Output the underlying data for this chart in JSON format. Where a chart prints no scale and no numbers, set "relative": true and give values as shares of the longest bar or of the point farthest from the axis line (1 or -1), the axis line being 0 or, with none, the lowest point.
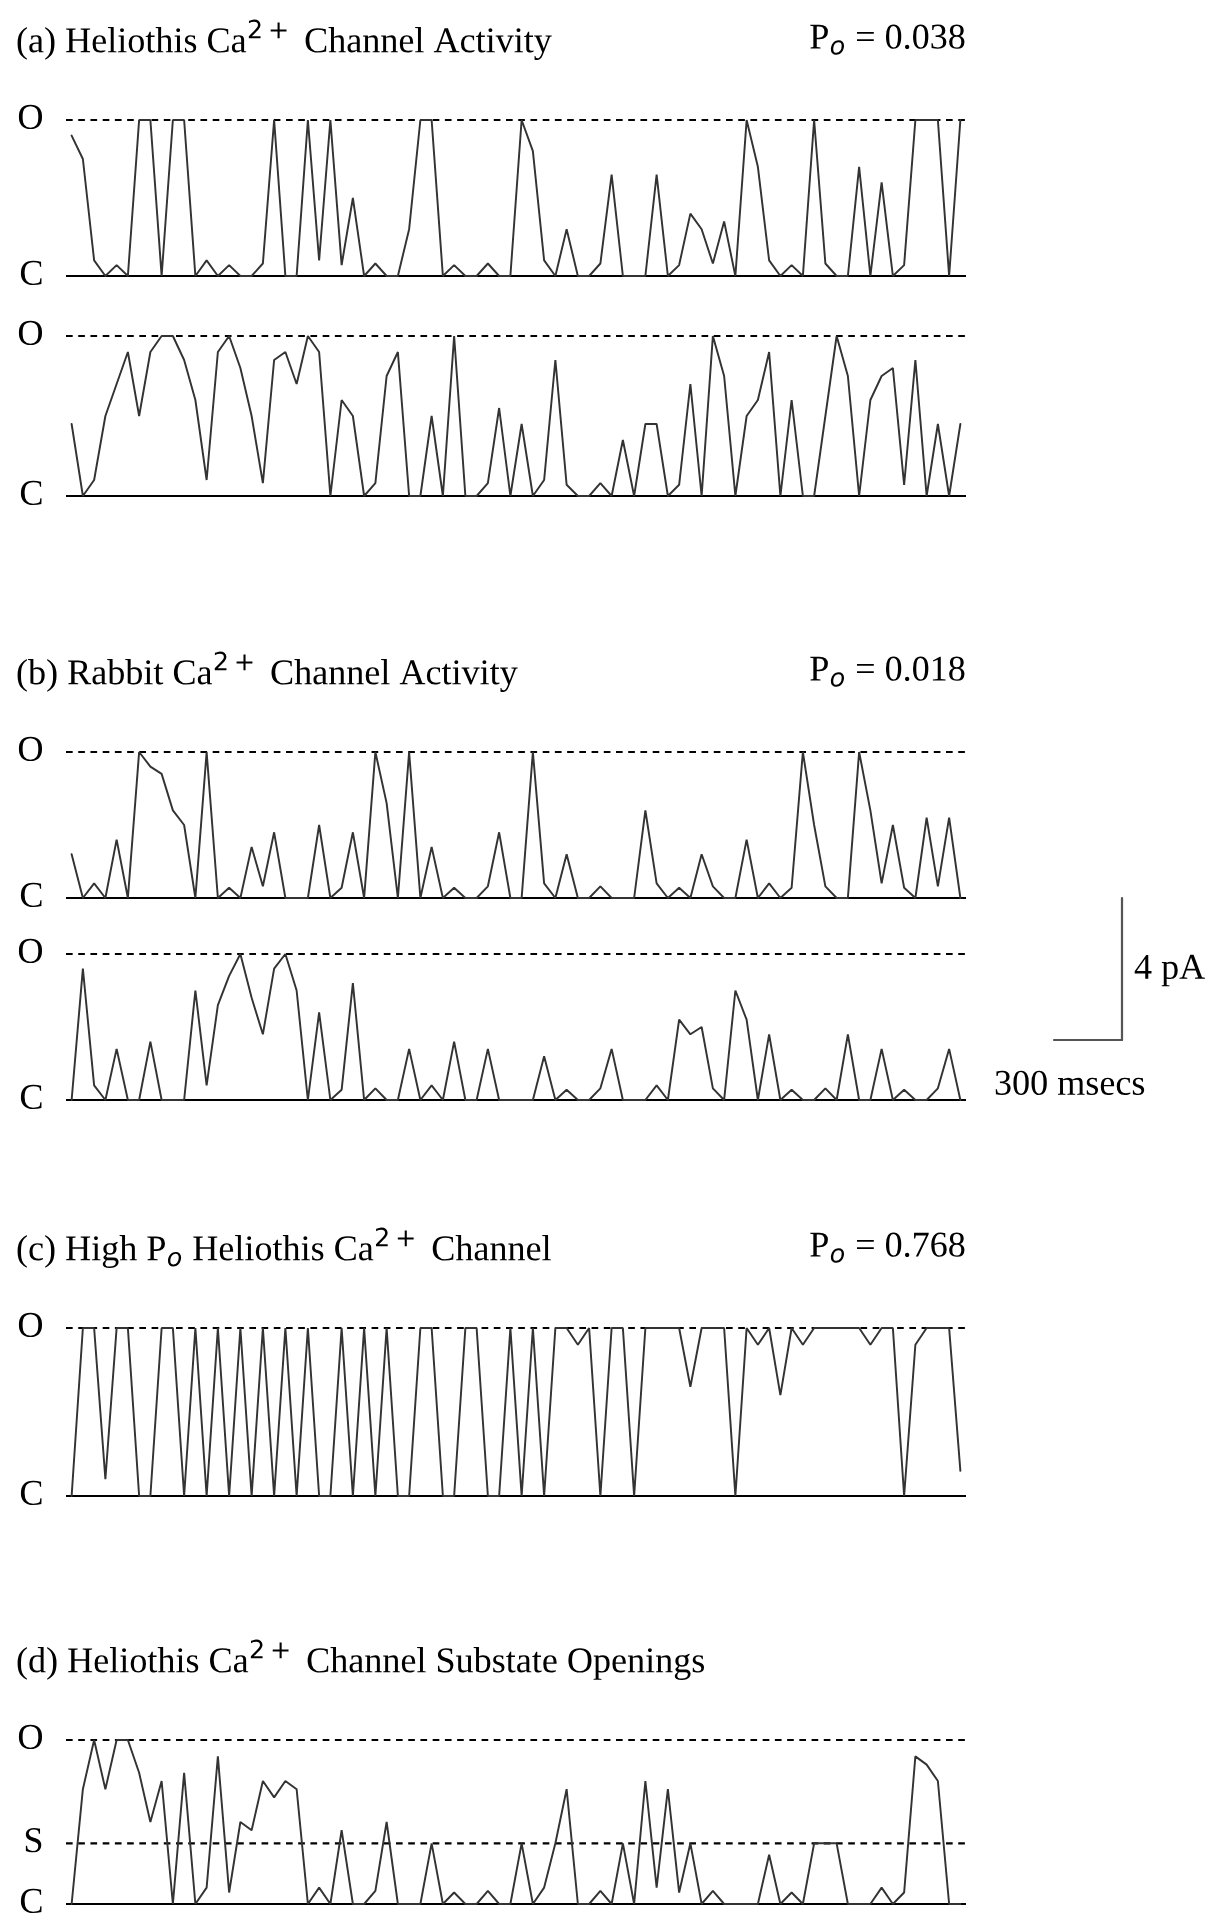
{
  "chart_data": [
    {
      "type": "line",
      "relative": true,
      "title": "(a) Heliothis Ca$^{2+}$ Channel Activity",
      "annotations": [
        "P$_{o}$ = 0.038"
      ],
      "categories": [
        null,
        null,
        null,
        null,
        null,
        null,
        null,
        null,
        null,
        null,
        null,
        null,
        null,
        null,
        null,
        null,
        null,
        null,
        null,
        null,
        null,
        null,
        null,
        null,
        null,
        null,
        null,
        null,
        null,
        null,
        null,
        null,
        null,
        null,
        null,
        null,
        null,
        null,
        null,
        null,
        null,
        null,
        null,
        null,
        null,
        null,
        null,
        null,
        null,
        null,
        null,
        null,
        null,
        null,
        null,
        null,
        null,
        null,
        null,
        null,
        null,
        null,
        null,
        null,
        null,
        null,
        null,
        null,
        null,
        null,
        null,
        null,
        null,
        null,
        null,
        null,
        null,
        null,
        null,
        null
      ],
      "ref_lines": [
        {
          "axis": "y",
          "value": 1,
          "label": "O",
          "line_style": "dashed",
          "color": "#000000"
        },
        {
          "axis": "y",
          "value": 0,
          "label": "C",
          "line_style": "solid",
          "color": "#000000"
        }
      ],
      "series": [
        {
          "color": "#333333",
          "values": [
            0.9,
            0.75,
            0.1,
            0,
            0.07,
            0,
            1,
            1,
            0,
            1,
            1,
            0,
            0.1,
            0,
            0.07,
            0,
            0,
            0.08,
            1,
            0,
            0,
            1,
            0.1,
            1,
            0.07,
            0.5,
            0,
            0.08,
            0,
            0,
            0.3,
            1,
            1,
            0,
            0.07,
            0,
            0,
            0.08,
            0,
            0,
            1,
            0.8,
            0.1,
            0,
            0.3,
            0,
            0,
            0.08,
            0.65,
            0,
            0,
            0,
            0.65,
            0,
            0.07,
            0.4,
            0.3,
            0.08,
            0.35,
            0,
            1,
            0.7,
            0.1,
            0,
            0.07,
            0,
            1,
            0.08,
            0,
            0,
            0.7,
            0,
            0.6,
            0,
            0.07,
            1,
            1,
            1,
            0,
            1
          ]
        }
      ]
    },
    {
      "type": "line",
      "relative": true,
      "categories": [
        null,
        null,
        null,
        null,
        null,
        null,
        null,
        null,
        null,
        null,
        null,
        null,
        null,
        null,
        null,
        null,
        null,
        null,
        null,
        null,
        null,
        null,
        null,
        null,
        null,
        null,
        null,
        null,
        null,
        null,
        null,
        null,
        null,
        null,
        null,
        null,
        null,
        null,
        null,
        null,
        null,
        null,
        null,
        null,
        null,
        null,
        null,
        null,
        null,
        null,
        null,
        null,
        null,
        null,
        null,
        null,
        null,
        null,
        null,
        null,
        null,
        null,
        null,
        null,
        null,
        null,
        null,
        null,
        null,
        null,
        null,
        null,
        null,
        null,
        null,
        null,
        null,
        null,
        null,
        null
      ],
      "ref_lines": [
        {
          "axis": "y",
          "value": 1,
          "label": "O",
          "line_style": "dashed",
          "color": "#000000"
        },
        {
          "axis": "y",
          "value": 0,
          "label": "C",
          "line_style": "solid",
          "color": "#000000"
        }
      ],
      "series": [
        {
          "color": "#333333",
          "values": [
            0.45,
            0,
            0.1,
            0.5,
            0.7,
            0.9,
            0.5,
            0.9,
            1,
            1,
            0.85,
            0.6,
            0.1,
            0.9,
            1,
            0.8,
            0.5,
            0.08,
            0.85,
            0.9,
            0.7,
            1,
            0.9,
            0,
            0.6,
            0.5,
            0,
            0.08,
            0.75,
            0.9,
            0,
            0,
            0.5,
            0,
            1,
            0,
            0,
            0.08,
            0.55,
            0,
            0.45,
            0,
            0.1,
            0.85,
            0.07,
            0,
            0,
            0.08,
            0,
            0.35,
            0,
            0.45,
            0.45,
            0,
            0.07,
            0.7,
            0,
            1,
            0.75,
            0,
            0.5,
            0.6,
            0.9,
            0,
            0.6,
            0,
            0,
            0.5,
            1,
            0.75,
            0,
            0.6,
            0.75,
            0.8,
            0.07,
            0.85,
            0,
            0.45,
            0,
            0.45
          ]
        }
      ]
    },
    {
      "type": "line",
      "relative": true,
      "title": "(b) Rabbit Ca$^{2+}$ Channel Activity",
      "annotations": [
        "P$_{o}$ = 0.018"
      ],
      "categories": [
        null,
        null,
        null,
        null,
        null,
        null,
        null,
        null,
        null,
        null,
        null,
        null,
        null,
        null,
        null,
        null,
        null,
        null,
        null,
        null,
        null,
        null,
        null,
        null,
        null,
        null,
        null,
        null,
        null,
        null,
        null,
        null,
        null,
        null,
        null,
        null,
        null,
        null,
        null,
        null,
        null,
        null,
        null,
        null,
        null,
        null,
        null,
        null,
        null,
        null,
        null,
        null,
        null,
        null,
        null,
        null,
        null,
        null,
        null,
        null,
        null,
        null,
        null,
        null,
        null,
        null,
        null,
        null,
        null,
        null,
        null,
        null,
        null,
        null,
        null,
        null,
        null,
        null,
        null,
        null
      ],
      "ref_lines": [
        {
          "axis": "y",
          "value": 1,
          "label": "O",
          "line_style": "dashed",
          "color": "#000000"
        },
        {
          "axis": "y",
          "value": 0,
          "label": "C",
          "line_style": "solid",
          "color": "#000000"
        }
      ],
      "series": [
        {
          "color": "#333333",
          "values": [
            0.3,
            0,
            0.1,
            0,
            0.4,
            0,
            1,
            0.9,
            0.85,
            0.6,
            0.5,
            0,
            1,
            0,
            0.07,
            0,
            0.35,
            0.08,
            0.45,
            0,
            0,
            0,
            0.5,
            0,
            0.07,
            0.45,
            0,
            1,
            0.65,
            0,
            1,
            0,
            0.35,
            0,
            0.07,
            0,
            0,
            0.08,
            0.45,
            0,
            0,
            1,
            0.1,
            0,
            0.3,
            0,
            0,
            0.08,
            0,
            0,
            0,
            0.6,
            0.1,
            0,
            0.07,
            0,
            0.3,
            0.08,
            0,
            0,
            0.4,
            0,
            0.1,
            0,
            0.07,
            1,
            0.5,
            0.08,
            0,
            0,
            1,
            0.6,
            0.1,
            0.5,
            0.07,
            0,
            0.55,
            0.08,
            0.55,
            0
          ]
        }
      ]
    },
    {
      "type": "line",
      "relative": true,
      "annotations": [
        "4 pA",
        "300 msecs"
      ],
      "categories": [
        null,
        null,
        null,
        null,
        null,
        null,
        null,
        null,
        null,
        null,
        null,
        null,
        null,
        null,
        null,
        null,
        null,
        null,
        null,
        null,
        null,
        null,
        null,
        null,
        null,
        null,
        null,
        null,
        null,
        null,
        null,
        null,
        null,
        null,
        null,
        null,
        null,
        null,
        null,
        null,
        null,
        null,
        null,
        null,
        null,
        null,
        null,
        null,
        null,
        null,
        null,
        null,
        null,
        null,
        null,
        null,
        null,
        null,
        null,
        null,
        null,
        null,
        null,
        null,
        null,
        null,
        null,
        null,
        null,
        null,
        null,
        null,
        null,
        null,
        null,
        null,
        null,
        null,
        null,
        null
      ],
      "ref_lines": [
        {
          "axis": "y",
          "value": 1,
          "label": "O",
          "line_style": "dashed",
          "color": "#000000"
        },
        {
          "axis": "y",
          "value": 0,
          "label": "C",
          "line_style": "solid",
          "color": "#000000"
        }
      ],
      "series": [
        {
          "color": "#333333",
          "values": [
            0,
            0.9,
            0.1,
            0,
            0.35,
            0,
            0,
            0.4,
            0,
            0,
            0,
            0.75,
            0.1,
            0.65,
            0.85,
            1,
            0.7,
            0.45,
            0.9,
            1,
            0.75,
            0,
            0.6,
            0,
            0.07,
            0.8,
            0,
            0.08,
            0,
            0,
            0.35,
            0,
            0.1,
            0,
            0.4,
            0,
            0,
            0.35,
            0,
            0,
            0,
            0,
            0.3,
            0,
            0.07,
            0,
            0,
            0.08,
            0.35,
            0,
            0,
            0,
            0.1,
            0,
            0.55,
            0.45,
            0.5,
            0.08,
            0,
            0.75,
            0.55,
            0,
            0.45,
            0,
            0.07,
            0,
            0,
            0.08,
            0,
            0.45,
            0,
            0,
            0.35,
            0,
            0.07,
            0,
            0,
            0.08,
            0.35,
            0
          ]
        }
      ]
    },
    {
      "type": "line",
      "relative": true,
      "title": "(c) High P$_{o}$ Heliothis Ca$^{2+}$ Channel",
      "annotations": [
        "P$_{o}$ = 0.768"
      ],
      "categories": [
        null,
        null,
        null,
        null,
        null,
        null,
        null,
        null,
        null,
        null,
        null,
        null,
        null,
        null,
        null,
        null,
        null,
        null,
        null,
        null,
        null,
        null,
        null,
        null,
        null,
        null,
        null,
        null,
        null,
        null,
        null,
        null,
        null,
        null,
        null,
        null,
        null,
        null,
        null,
        null,
        null,
        null,
        null,
        null,
        null,
        null,
        null,
        null,
        null,
        null,
        null,
        null,
        null,
        null,
        null,
        null,
        null,
        null,
        null,
        null,
        null,
        null,
        null,
        null,
        null,
        null,
        null,
        null,
        null,
        null,
        null,
        null,
        null,
        null,
        null,
        null,
        null,
        null,
        null,
        null
      ],
      "ref_lines": [
        {
          "axis": "y",
          "value": 1,
          "label": "O",
          "line_style": "dashed",
          "color": "#000000"
        },
        {
          "axis": "y",
          "value": 0,
          "label": "C",
          "line_style": "solid",
          "color": "#000000"
        }
      ],
      "series": [
        {
          "color": "#333333",
          "values": [
            0,
            1,
            1,
            0.1,
            1,
            1,
            0,
            0,
            1,
            1,
            0,
            1,
            0,
            1,
            0,
            1,
            0,
            1,
            0,
            1,
            0,
            1,
            0,
            0,
            1,
            0,
            1,
            0,
            1,
            0,
            0,
            1,
            1,
            0,
            0,
            1,
            1,
            0,
            0,
            1,
            0,
            1,
            0,
            1,
            1,
            0.9,
            1,
            0,
            1,
            1,
            0,
            1,
            1,
            1,
            1,
            0.65,
            1,
            1,
            1,
            0,
            1,
            0.9,
            1,
            0.6,
            1,
            0.9,
            1,
            1,
            1,
            1,
            1,
            0.9,
            1,
            1,
            0,
            0.9,
            1,
            1,
            1,
            0.15
          ]
        }
      ]
    },
    {
      "type": "line",
      "relative": true,
      "title": "(d) Heliothis Ca$^{2+}$ Channel Substate Openings",
      "categories": [
        null,
        null,
        null,
        null,
        null,
        null,
        null,
        null,
        null,
        null,
        null,
        null,
        null,
        null,
        null,
        null,
        null,
        null,
        null,
        null,
        null,
        null,
        null,
        null,
        null,
        null,
        null,
        null,
        null,
        null,
        null,
        null,
        null,
        null,
        null,
        null,
        null,
        null,
        null,
        null,
        null,
        null,
        null,
        null,
        null,
        null,
        null,
        null,
        null,
        null,
        null,
        null,
        null,
        null,
        null,
        null,
        null,
        null,
        null,
        null,
        null,
        null,
        null,
        null,
        null,
        null,
        null,
        null,
        null,
        null,
        null,
        null,
        null,
        null,
        null,
        null,
        null,
        null,
        null,
        null
      ],
      "ref_lines": [
        {
          "axis": "y",
          "value": 1,
          "label": "O",
          "line_style": "dashed",
          "color": "#000000"
        },
        {
          "axis": "y",
          "value": 0.37,
          "label": "S",
          "line_style": "dashed",
          "color": "#000000"
        },
        {
          "axis": "y",
          "value": 0,
          "label": "C",
          "line_style": "solid",
          "color": "#000000"
        }
      ],
      "series": [
        {
          "color": "#333333",
          "values": [
            0,
            0.7,
            1,
            0.7,
            1,
            1,
            0.8,
            0.5,
            0.75,
            0,
            0.8,
            0,
            0.1,
            0.9,
            0.07,
            0.5,
            0.45,
            0.75,
            0.65,
            0.75,
            0.7,
            0,
            0.1,
            0,
            0.45,
            0,
            0,
            0.08,
            0.5,
            0,
            0,
            0,
            0.37,
            0,
            0.07,
            0,
            0,
            0.08,
            0,
            0,
            0.37,
            0,
            0.1,
            0.37,
            0.7,
            0,
            0,
            0.08,
            0,
            0.37,
            0,
            0.75,
            0.1,
            0.7,
            0.07,
            0.37,
            0,
            0.08,
            0,
            0,
            0,
            0,
            0.3,
            0,
            0.07,
            0,
            0.37,
            0.37,
            0.37,
            0,
            0,
            0,
            0.1,
            0,
            0.07,
            0.9,
            0.85,
            0.75,
            0,
            0
          ]
        }
      ]
    }
  ]
}
